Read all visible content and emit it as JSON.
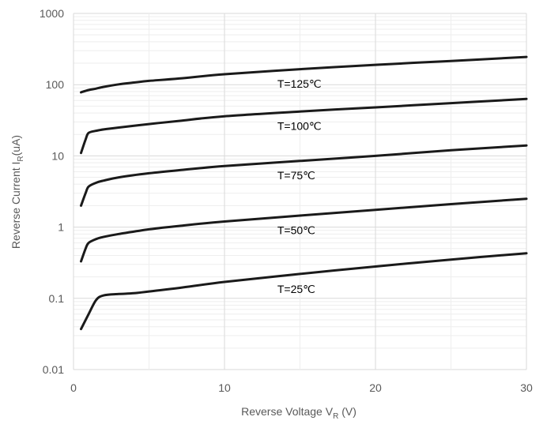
{
  "chart_data": {
    "type": "line",
    "xlabel": {
      "main": "Reverse Voltage V",
      "sub": "R",
      "unit": " (V)"
    },
    "ylabel": {
      "main": "Reverse Current I",
      "sub": "R",
      "unit": "(uA)"
    },
    "xlim": [
      0,
      30
    ],
    "ylim": [
      0.01,
      1000
    ],
    "y_scale": "log",
    "x_ticks": [
      "0",
      "10",
      "20",
      "30"
    ],
    "y_ticks": [
      "0.01",
      "0.1",
      "1",
      "10",
      "100",
      "1000"
    ],
    "grid": true,
    "line_color": "#1a1a1a",
    "series": [
      {
        "name": "T=125℃",
        "x": [
          0.5,
          1,
          1.5,
          2,
          3,
          4,
          5,
          7,
          10,
          15,
          20,
          25,
          30
        ],
        "y": [
          78,
          84,
          88,
          93,
          101,
          107,
          113,
          122,
          140,
          165,
          190,
          215,
          245
        ]
      },
      {
        "name": "T=100℃",
        "x": [
          0.5,
          0.8,
          1,
          1.5,
          2,
          3,
          5,
          7,
          10,
          15,
          20,
          25,
          30
        ],
        "y": [
          11,
          17,
          21,
          22.5,
          23.5,
          25,
          28,
          31,
          36,
          42,
          48,
          55,
          63
        ]
      },
      {
        "name": "T=75℃",
        "x": [
          0.5,
          0.8,
          1,
          1.5,
          2,
          3,
          5,
          7,
          10,
          15,
          20,
          25,
          30
        ],
        "y": [
          2,
          3,
          3.7,
          4.2,
          4.5,
          5,
          5.7,
          6.3,
          7.2,
          8.5,
          10,
          12,
          14
        ]
      },
      {
        "name": "T=50℃",
        "x": [
          0.5,
          0.8,
          1,
          1.5,
          2,
          3,
          5,
          7,
          10,
          15,
          20,
          25,
          30
        ],
        "y": [
          0.33,
          0.5,
          0.6,
          0.68,
          0.73,
          0.8,
          0.93,
          1.04,
          1.2,
          1.45,
          1.75,
          2.1,
          2.5
        ]
      },
      {
        "name": "T=25℃",
        "x": [
          0.5,
          1,
          1.5,
          2,
          3,
          4,
          5,
          7,
          10,
          15,
          20,
          25,
          30
        ],
        "y": [
          0.037,
          0.06,
          0.095,
          0.11,
          0.115,
          0.118,
          0.125,
          0.14,
          0.17,
          0.22,
          0.28,
          0.35,
          0.43
        ]
      }
    ]
  }
}
